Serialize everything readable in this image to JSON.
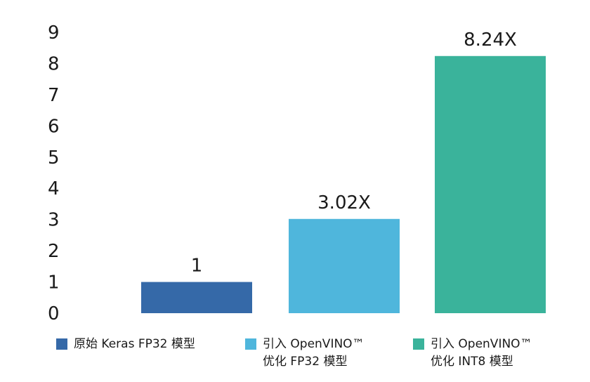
{
  "chart_data": {
    "type": "bar",
    "categories": [
      "原始 Keras FP32 模型",
      "引入 OpenVINO™\n优化 FP32 模型",
      "引入 OpenVINO™\n优化 INT8 模型"
    ],
    "values": [
      1,
      3.02,
      8.24
    ],
    "data_labels": [
      "1",
      "3.02X",
      "8.24X"
    ],
    "colors": [
      "#3569A8",
      "#4FB6DC",
      "#3AB39B"
    ],
    "yticks": [
      0,
      1,
      2,
      3,
      4,
      5,
      6,
      7,
      8,
      9
    ],
    "ylim": [
      0,
      9
    ],
    "grid": false,
    "legend_position": "bottom"
  }
}
